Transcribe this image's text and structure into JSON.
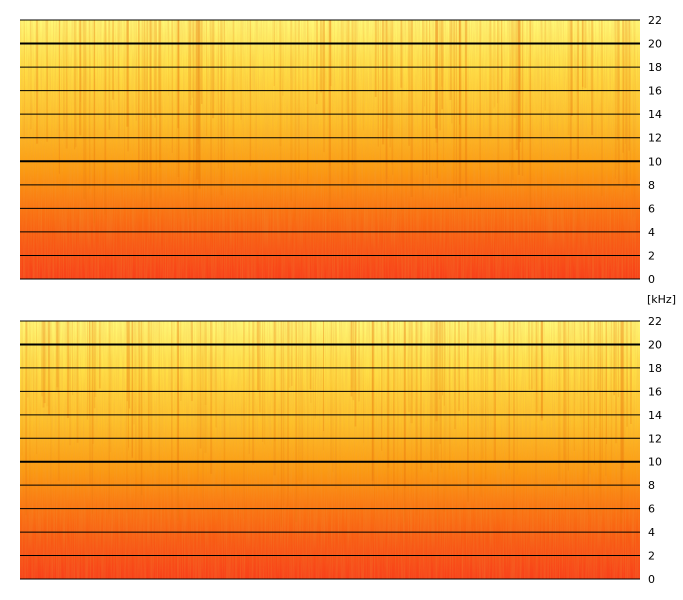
{
  "chart_data": [
    {
      "type": "heatmap",
      "title": "",
      "xlabel": "",
      "ylabel": "",
      "unit": "[kHz]",
      "ylim": [
        0,
        22
      ],
      "yticks": [
        "0",
        "2",
        "4",
        "6",
        "8",
        "10",
        "12",
        "14",
        "16",
        "18",
        "20",
        "22"
      ],
      "y_values": [
        0,
        2,
        4,
        6,
        8,
        10,
        12,
        14,
        16,
        18,
        20,
        22
      ],
      "major_lines": [
        10,
        20
      ],
      "grid": true,
      "colors": {
        "low": "#f83a10",
        "mid": "#fb9a10",
        "high": "#fff56a"
      }
    },
    {
      "type": "heatmap",
      "title": "",
      "xlabel": "",
      "ylabel": "",
      "ylim": [
        0,
        22
      ],
      "yticks": [
        "0",
        "2",
        "4",
        "6",
        "8",
        "10",
        "12",
        "14",
        "16",
        "18",
        "20",
        "22"
      ],
      "y_values": [
        0,
        2,
        4,
        6,
        8,
        10,
        12,
        14,
        16,
        18,
        20,
        22
      ],
      "major_lines": [
        10,
        20
      ],
      "grid": true,
      "colors": {
        "low": "#f83a10",
        "mid": "#fb9a10",
        "high": "#fff56a"
      }
    }
  ]
}
